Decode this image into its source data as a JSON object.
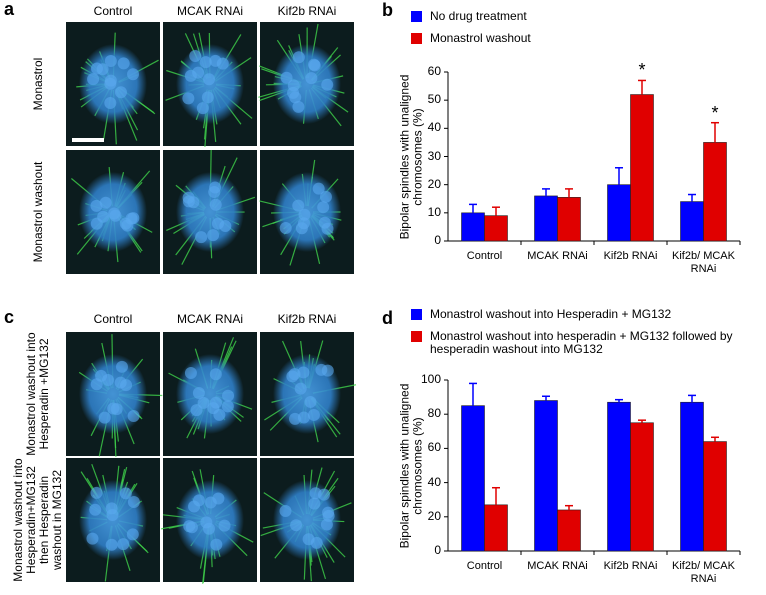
{
  "figure": {
    "panels": [
      {
        "label": "a",
        "columns": [
          "Control",
          "MCAK RNAi",
          "Kif2b RNAi"
        ],
        "rows": [
          "Monastrol",
          "Monastrol washout"
        ]
      },
      {
        "label": "c",
        "columns": [
          "Control",
          "MCAK RNAi",
          "Kif2b RNAi"
        ],
        "rows": [
          "Monastrol washout into Hesperadin +MG132",
          "Monastrol washout into Hesperadin+MG132 then Hesperadin washout in MG132"
        ]
      }
    ]
  },
  "chart_data": [
    {
      "type": "bar",
      "panel_label": "b",
      "y_label": "Bipolar spindles with unaligned chromosomes (%)",
      "categories": [
        "Control",
        "MCAK RNAi",
        "Kif2b RNAi",
        "Kif2b/ MCAK RNAi"
      ],
      "series": [
        {
          "name": "No drug treatment",
          "color": "#0000ff",
          "values": [
            10,
            16,
            20,
            14
          ],
          "errors": [
            3,
            2.5,
            6,
            2.5
          ]
        },
        {
          "name": "Monastrol washout",
          "color": "#e00000",
          "values": [
            9,
            15.5,
            52,
            35
          ],
          "errors": [
            3,
            3,
            5,
            7
          ],
          "annotations": [
            null,
            null,
            "*",
            "*"
          ]
        }
      ],
      "ylim": [
        0,
        60
      ],
      "yticks": [
        0,
        10,
        20,
        30,
        40,
        50,
        60
      ]
    },
    {
      "type": "bar",
      "panel_label": "d",
      "y_label": "Bipolar spindles with unaligned chromosomes (%)",
      "categories": [
        "Control",
        "MCAK RNAi",
        "Kif2b RNAi",
        "Kif2b/ MCAK RNAi"
      ],
      "series": [
        {
          "name": "Monastrol washout into Hesperadin + MG132",
          "color": "#0000ff",
          "values": [
            85,
            88,
            87,
            87
          ],
          "errors": [
            13,
            2.5,
            1.5,
            4
          ]
        },
        {
          "name": "Monastrol washout into hesperadin + MG132 followed by hesperadin washout into MG132",
          "color": "#e00000",
          "values": [
            27,
            24,
            75,
            64
          ],
          "errors": [
            10,
            2.5,
            1.5,
            2.5
          ]
        }
      ],
      "ylim": [
        0,
        100
      ],
      "yticks": [
        0,
        20,
        40,
        60,
        80,
        100
      ]
    }
  ]
}
